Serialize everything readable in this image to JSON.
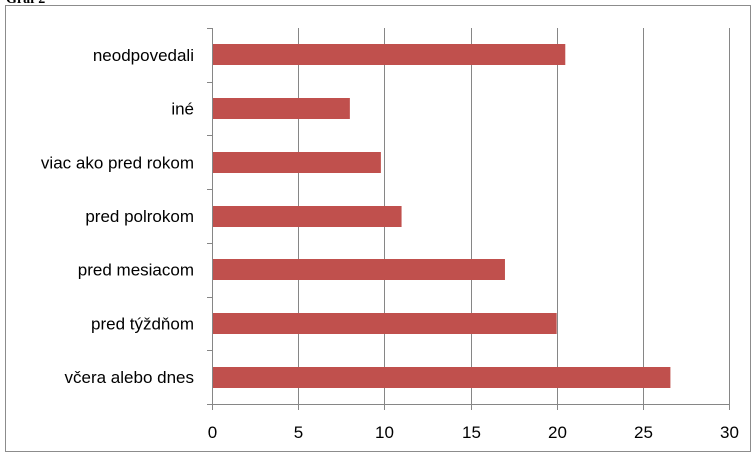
{
  "caption": "Graf 2",
  "chart_data": {
    "type": "bar",
    "orientation": "horizontal",
    "categories": [
      "neodpovedali",
      "iné",
      "viac ako pred rokom",
      "pred polrokom",
      "pred mesiacom",
      "pred týždňom",
      "včera alebo dnes"
    ],
    "values": [
      20.5,
      8,
      9.8,
      11,
      17,
      20,
      26.6
    ],
    "xlim": [
      0,
      30
    ],
    "xticks": [
      0,
      5,
      10,
      15,
      20,
      25,
      30
    ],
    "grid": "vertical",
    "legend": "none",
    "bar_color": "#C0504D",
    "grid_color": "#868686",
    "title": "",
    "xlabel": "",
    "ylabel": ""
  }
}
